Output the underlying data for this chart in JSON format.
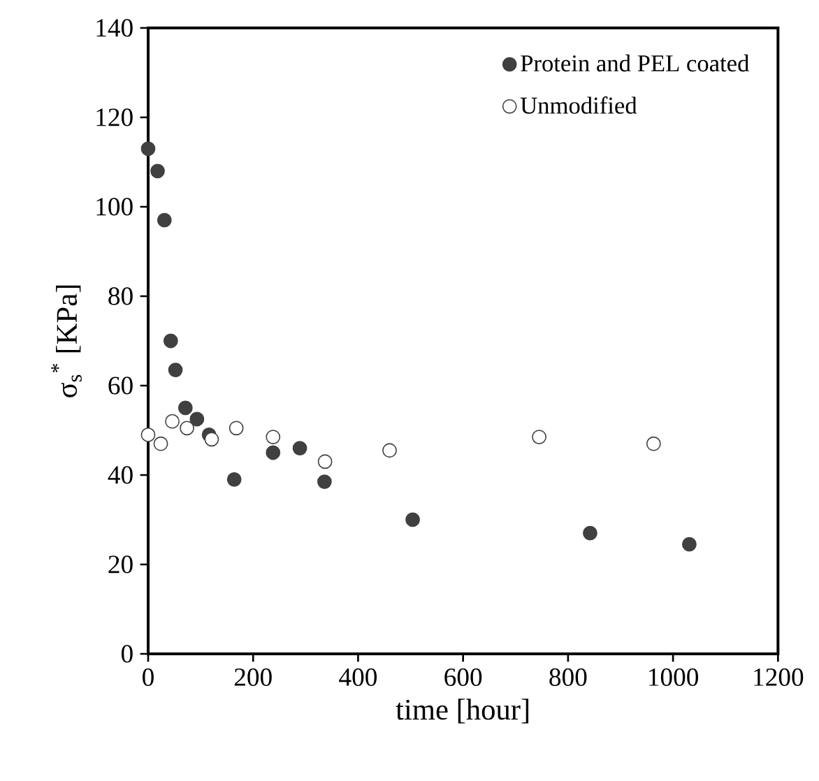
{
  "chart_data": {
    "type": "scatter",
    "xlabel": "time [hour]",
    "ylabel": "σ$_{s}$$^{*}$ [KPa]",
    "xlim": [
      0,
      1200
    ],
    "ylim": [
      0,
      140
    ],
    "xticks": [
      0,
      200,
      400,
      600,
      800,
      1000,
      1200
    ],
    "yticks": [
      0,
      20,
      40,
      60,
      80,
      100,
      120,
      140
    ],
    "grid": false,
    "legend": "top right",
    "series": [
      {
        "name": "Protein and PEL coated",
        "color": "#404040",
        "x": [
          0,
          18,
          31,
          43,
          52,
          71,
          93,
          116,
          164,
          238,
          289,
          336,
          504,
          842,
          1031
        ],
        "values": [
          113,
          108,
          97,
          70,
          63.5,
          55,
          52.5,
          49,
          39,
          45,
          46,
          38.5,
          30,
          27,
          24.5
        ]
      },
      {
        "name": "Unmodified",
        "color": "#ffffff",
        "x": [
          0,
          24,
          46,
          74,
          121,
          168,
          238,
          337,
          460,
          745,
          963
        ],
        "values": [
          49,
          47,
          52,
          50.5,
          48,
          50.5,
          48.5,
          43,
          45.5,
          48.5,
          47
        ]
      }
    ]
  }
}
